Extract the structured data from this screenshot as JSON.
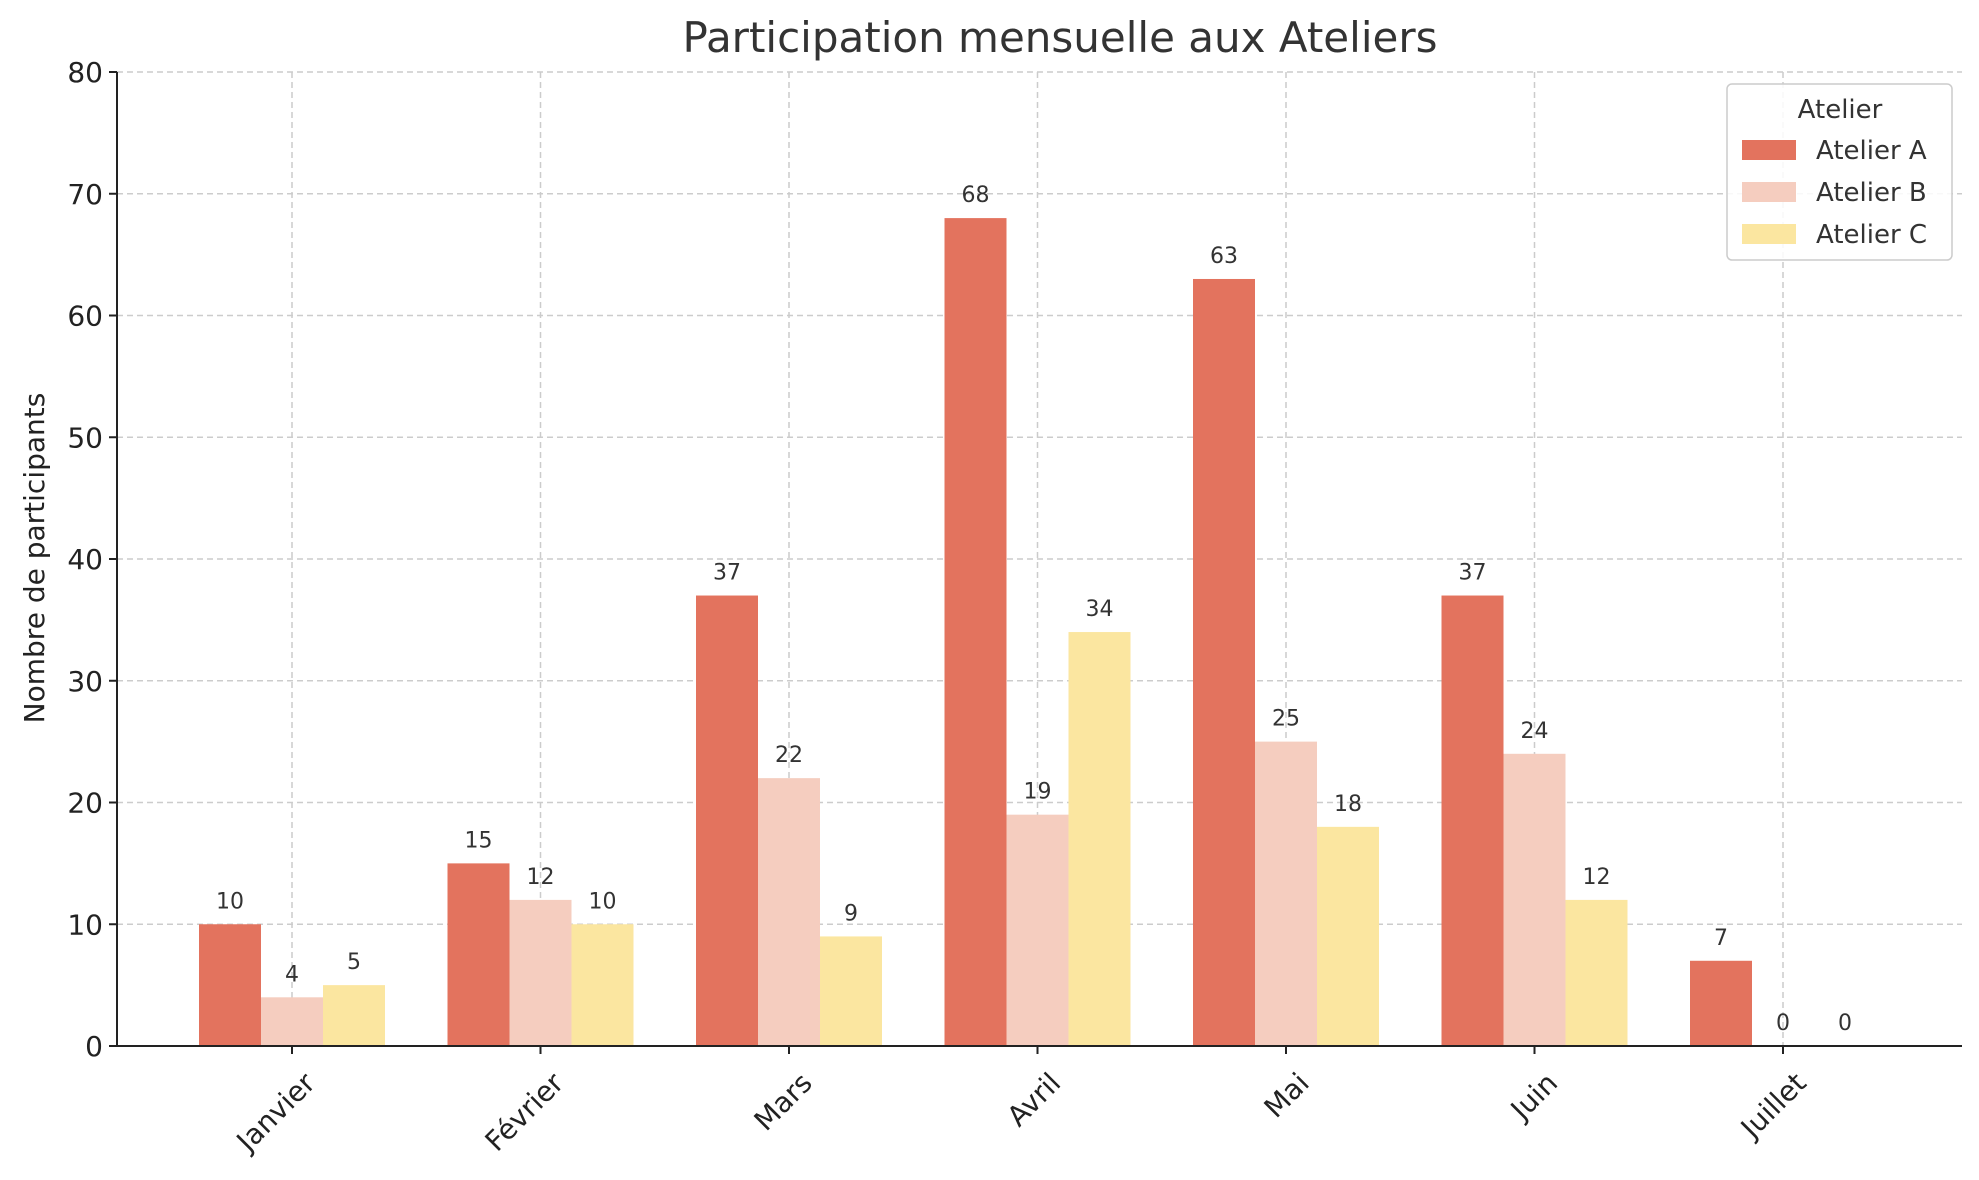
{
  "chart_data": {
    "type": "bar",
    "title": "Participation mensuelle aux Ateliers",
    "xlabel": "",
    "ylabel": "Nombre de participants",
    "ylim": [
      0,
      80
    ],
    "yticks": [
      0,
      10,
      20,
      30,
      40,
      50,
      60,
      70,
      80
    ],
    "grid": true,
    "legend": {
      "title": "Atelier",
      "placement": "top-right"
    },
    "categories": [
      "Janvier",
      "Février",
      "Mars",
      "Avril",
      "Mai",
      "Juin",
      "Juillet"
    ],
    "series": [
      {
        "name": "Atelier A",
        "color": "#e3735e",
        "values": [
          10,
          15,
          37,
          68,
          63,
          37,
          7
        ]
      },
      {
        "name": "Atelier B",
        "color": "#f5cdbf",
        "values": [
          4,
          12,
          22,
          19,
          25,
          24,
          0
        ]
      },
      {
        "name": "Atelier C",
        "color": "#fbe6a0",
        "values": [
          5,
          10,
          9,
          34,
          18,
          12,
          0
        ]
      }
    ]
  }
}
